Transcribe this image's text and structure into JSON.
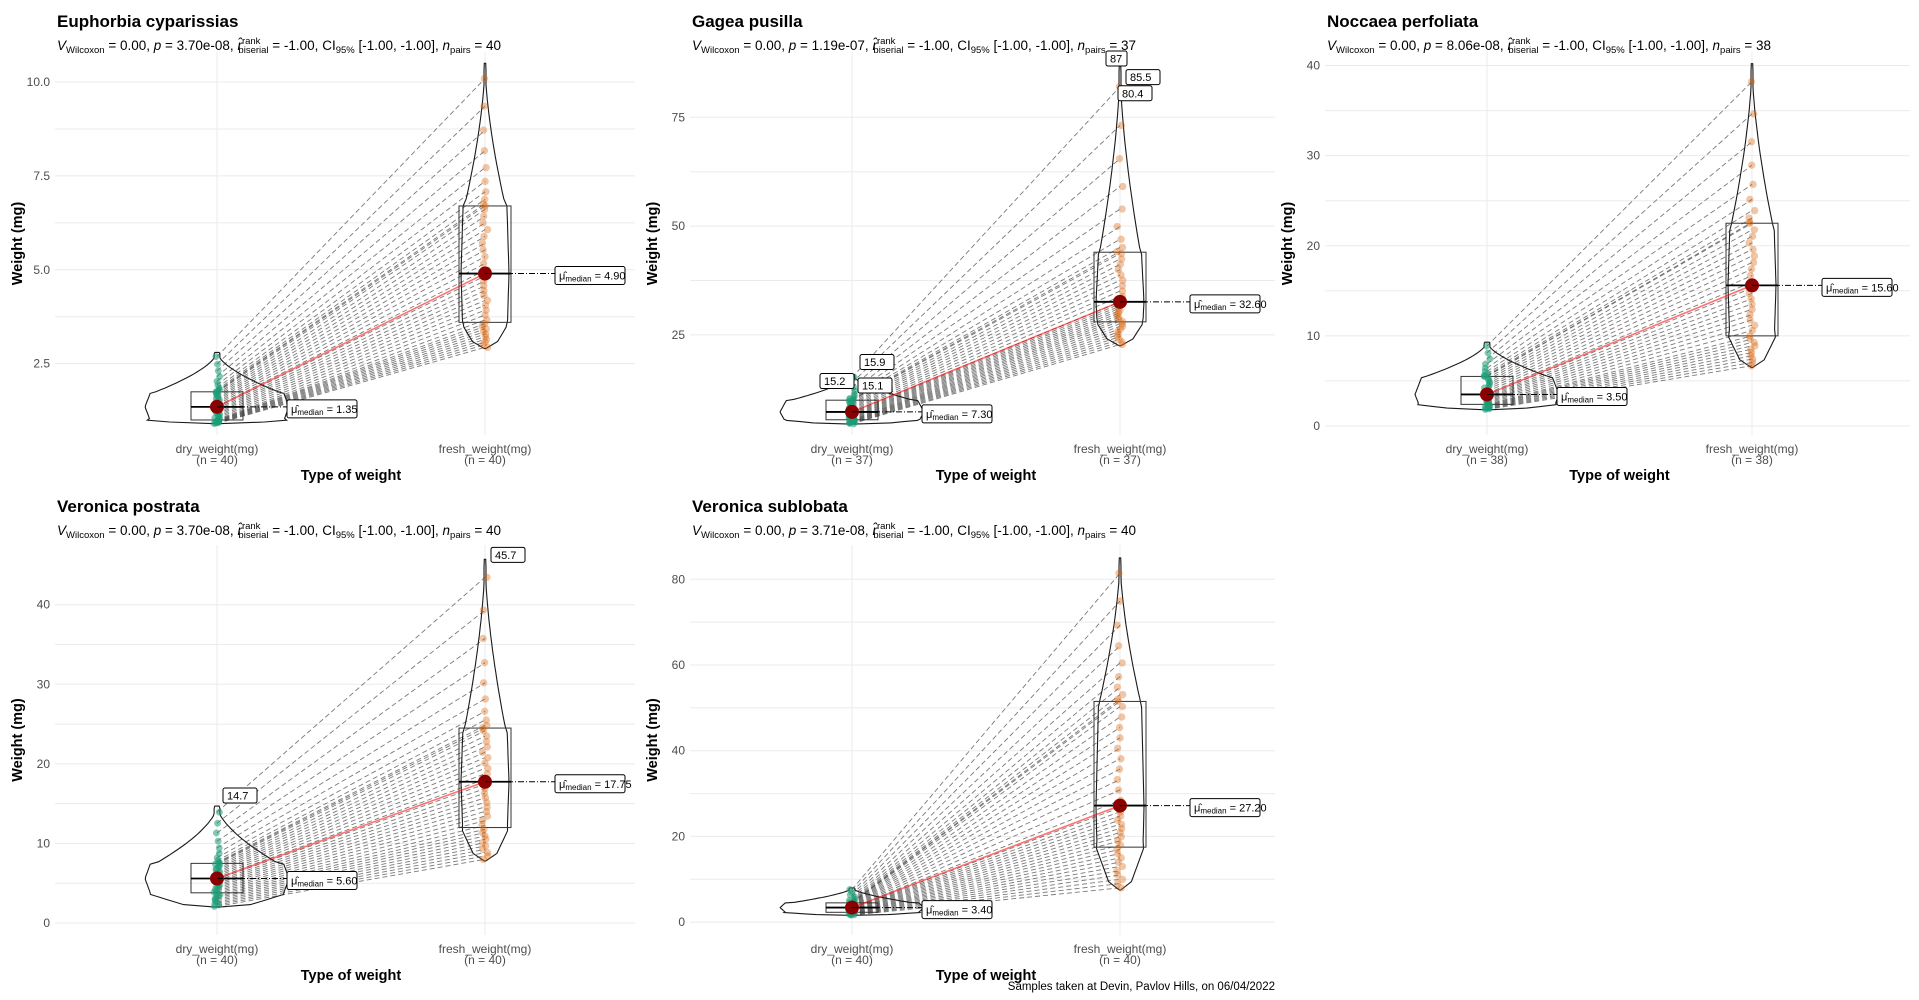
{
  "caption": "Samples taken at Devin, Pavlov Hills, on 06/04/2022",
  "chart_data": [
    {
      "type": "violin",
      "title": "Euphorbia cyparissias",
      "stats": {
        "statistic": "0.00",
        "p": "3.70e-08",
        "r": "-1.00",
        "ci": "[-1.00, -1.00]",
        "n_pairs": "40"
      },
      "xlabel": "Type of weight",
      "ylabel": "Weight (mg)",
      "ylim": [
        0.6,
        10.8
      ],
      "yticks": [
        2.5,
        5.0,
        7.5,
        10.0
      ],
      "ytick_labels": [
        "2.5",
        "5.0",
        "7.5",
        "10.0"
      ],
      "categories": [
        "dry_weight(mg)",
        "fresh_weight(mg)"
      ],
      "counts": [
        "(n = 40)",
        "(n = 40)"
      ],
      "medians": [
        1.35,
        4.9
      ],
      "median_labels": [
        "1.35",
        "4.90"
      ],
      "boxes": [
        [
          1.0,
          1.35,
          1.75
        ],
        [
          3.6,
          4.9,
          6.7
        ]
      ],
      "ranges": [
        [
          0.9,
          2.8
        ],
        [
          2.9,
          10.5
        ]
      ],
      "outlier_labels": []
    },
    {
      "type": "violin",
      "title": "Gagea pusilla",
      "stats": {
        "statistic": "0.00",
        "p": "1.19e-07",
        "r": "-1.00",
        "ci": "[-1.00, -1.00]",
        "n_pairs": "37"
      },
      "xlabel": "Type of weight",
      "ylabel": "Weight (mg)",
      "ylim": [
        2,
        90
      ],
      "yticks": [
        25,
        50,
        75
      ],
      "ytick_labels": [
        "25",
        "50",
        "75"
      ],
      "categories": [
        "dry_weight(mg)",
        "fresh_weight(mg)"
      ],
      "counts": [
        "(n = 37)",
        "(n = 37)"
      ],
      "medians": [
        7.3,
        32.6
      ],
      "median_labels": [
        "7.30",
        "32.60"
      ],
      "boxes": [
        [
          5.5,
          7.3,
          10.0
        ],
        [
          28.0,
          32.6,
          44.0
        ]
      ],
      "ranges": [
        [
          4.5,
          15.9
        ],
        [
          22.5,
          87.0
        ]
      ],
      "outlier_labels": [
        {
          "text": "15.9",
          "group": 0,
          "value": 15.9
        },
        {
          "text": "15.2",
          "group": 0,
          "value": 15.2
        },
        {
          "text": "15.1",
          "group": 0,
          "value": 15.1
        },
        {
          "text": "87",
          "group": 1,
          "value": 87
        },
        {
          "text": "85.5",
          "group": 1,
          "value": 85.5
        },
        {
          "text": "80.4",
          "group": 1,
          "value": 80.4
        }
      ]
    },
    {
      "type": "violin",
      "title": "Noccaea perfoliata",
      "stats": {
        "statistic": "0.00",
        "p": "8.06e-08",
        "r": "-1.00",
        "ci": "[-1.00, -1.00]",
        "n_pairs": "38"
      },
      "xlabel": "Type of weight",
      "ylabel": "Weight (mg)",
      "ylim": [
        -1,
        41.5
      ],
      "yticks": [
        0,
        10,
        20,
        30,
        40
      ],
      "ytick_labels": [
        "0",
        "10",
        "20",
        "30",
        "40"
      ],
      "categories": [
        "dry_weight(mg)",
        "fresh_weight(mg)"
      ],
      "counts": [
        "(n = 38)",
        "(n = 38)"
      ],
      "medians": [
        3.5,
        15.6
      ],
      "median_labels": [
        "3.50",
        "15.60"
      ],
      "boxes": [
        [
          2.4,
          3.5,
          5.5
        ],
        [
          10.0,
          15.6,
          22.5
        ]
      ],
      "ranges": [
        [
          1.8,
          9.3
        ],
        [
          6.5,
          40.2
        ]
      ],
      "outlier_labels": []
    },
    {
      "type": "violin",
      "title": "Veronica postrata",
      "stats": {
        "statistic": "0.00",
        "p": "3.70e-08",
        "r": "-1.00",
        "ci": "[-1.00, -1.00]",
        "n_pairs": "40"
      },
      "xlabel": "Type of weight",
      "ylabel": "Weight (mg)",
      "ylim": [
        -1.5,
        47.5
      ],
      "yticks": [
        0,
        10,
        20,
        30,
        40
      ],
      "ytick_labels": [
        "0",
        "10",
        "20",
        "30",
        "40"
      ],
      "categories": [
        "dry_weight(mg)",
        "fresh_weight(mg)"
      ],
      "counts": [
        "(n = 40)",
        "(n = 40)"
      ],
      "medians": [
        5.6,
        17.75
      ],
      "median_labels": [
        "5.60",
        "17.75"
      ],
      "boxes": [
        [
          3.8,
          5.6,
          7.5
        ],
        [
          12.0,
          17.75,
          24.5
        ]
      ],
      "ranges": [
        [
          2.0,
          14.7
        ],
        [
          7.8,
          45.7
        ]
      ],
      "outlier_labels": [
        {
          "text": "14.7",
          "group": 0,
          "value": 14.7
        },
        {
          "text": "45.7",
          "group": 1,
          "value": 45.7
        }
      ]
    },
    {
      "type": "violin",
      "title": "Veronica sublobata",
      "stats": {
        "statistic": "0.00",
        "p": "3.71e-08",
        "r": "-1.00",
        "ci": "[-1.00, -1.00]",
        "n_pairs": "40"
      },
      "xlabel": "Type of weight",
      "ylabel": "Weight (mg)",
      "ylim": [
        -3,
        88
      ],
      "yticks": [
        0,
        20,
        40,
        60,
        80
      ],
      "ytick_labels": [
        "0",
        "20",
        "40",
        "60",
        "80"
      ],
      "categories": [
        "dry_weight(mg)",
        "fresh_weight(mg)"
      ],
      "counts": [
        "(n = 40)",
        "(n = 40)"
      ],
      "medians": [
        3.4,
        27.2
      ],
      "median_labels": [
        "3.40",
        "27.20"
      ],
      "boxes": [
        [
          2.3,
          3.4,
          4.5
        ],
        [
          17.5,
          27.2,
          51.5
        ]
      ],
      "ranges": [
        [
          1.6,
          8.0
        ],
        [
          7.5,
          85.0
        ]
      ],
      "outlier_labels": []
    }
  ]
}
